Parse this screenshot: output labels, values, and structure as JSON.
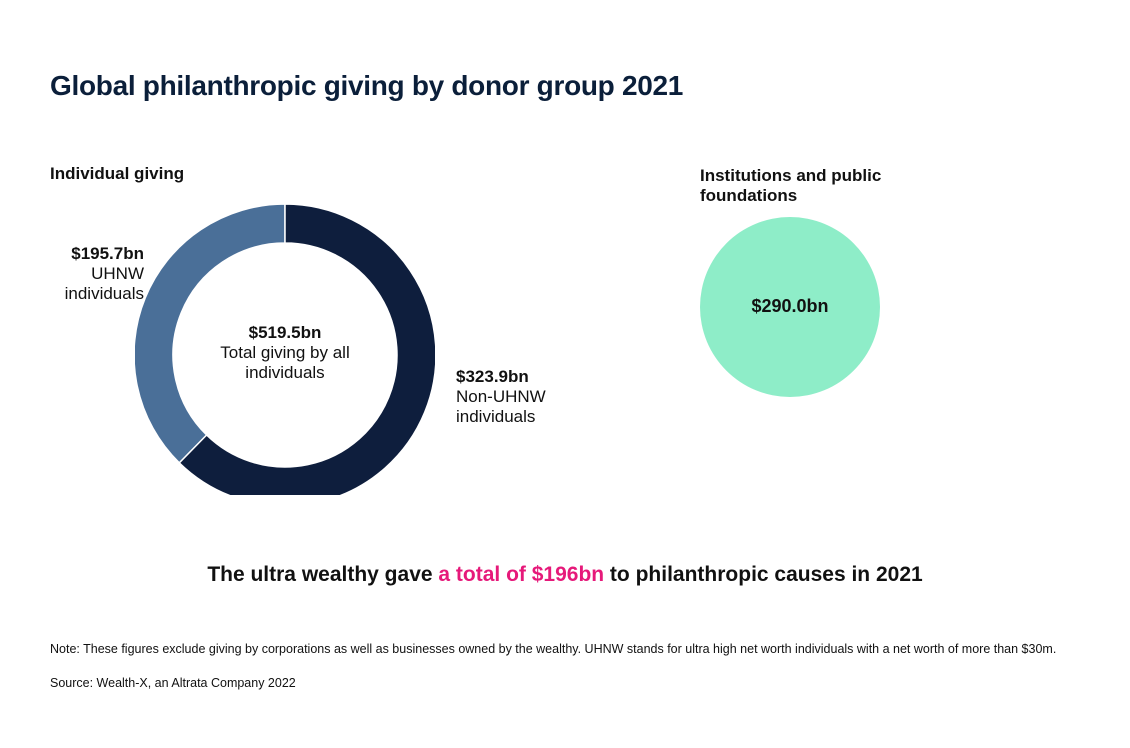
{
  "title": "Global philanthropic giving by donor group 2021",
  "colors": {
    "uhnw": "#4a6f98",
    "non_uhnw": "#0e1e3d",
    "institutions": "#8eedc8",
    "highlight": "#e6197a"
  },
  "chart_data": [
    {
      "type": "pie",
      "subtitle": "Individual giving",
      "center": {
        "value": "$519.5bn",
        "label": "Total giving by all individuals"
      },
      "slices": [
        {
          "name": "UHNW individuals",
          "value": 195.7,
          "label_value": "$195.7bn",
          "label_text": "UHNW individuals"
        },
        {
          "name": "Non-UHNW individuals",
          "value": 323.9,
          "label_value": "$323.9bn",
          "label_text": "Non-UHNW individuals"
        }
      ],
      "total": 519.5
    },
    {
      "type": "bubble",
      "subtitle": "Institutions and public foundations",
      "value": 290.0,
      "label_value": "$290.0bn"
    }
  ],
  "headline": {
    "prefix": "The ultra wealthy gave ",
    "highlight": "a total of $196bn",
    "suffix": " to philanthropic causes in 2021"
  },
  "note": "Note: These figures exclude giving by corporations as well as businesses owned by the wealthy. UHNW stands for ultra high net worth individuals with a net worth of more than $30m.",
  "source": "Source: Wealth-X, an Altrata Company 2022"
}
